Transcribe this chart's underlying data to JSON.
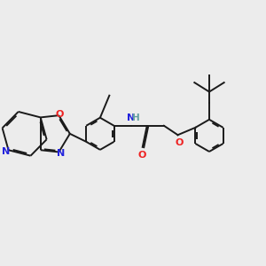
{
  "bg_color": "#ececec",
  "bond_color": "#1a1a1a",
  "bond_width": 1.4,
  "atom_colors": {
    "N": "#2222dd",
    "O": "#ee2222",
    "NH_H": "#5f9ea0",
    "NH_N": "#2222dd"
  },
  "font_size": 7.5
}
